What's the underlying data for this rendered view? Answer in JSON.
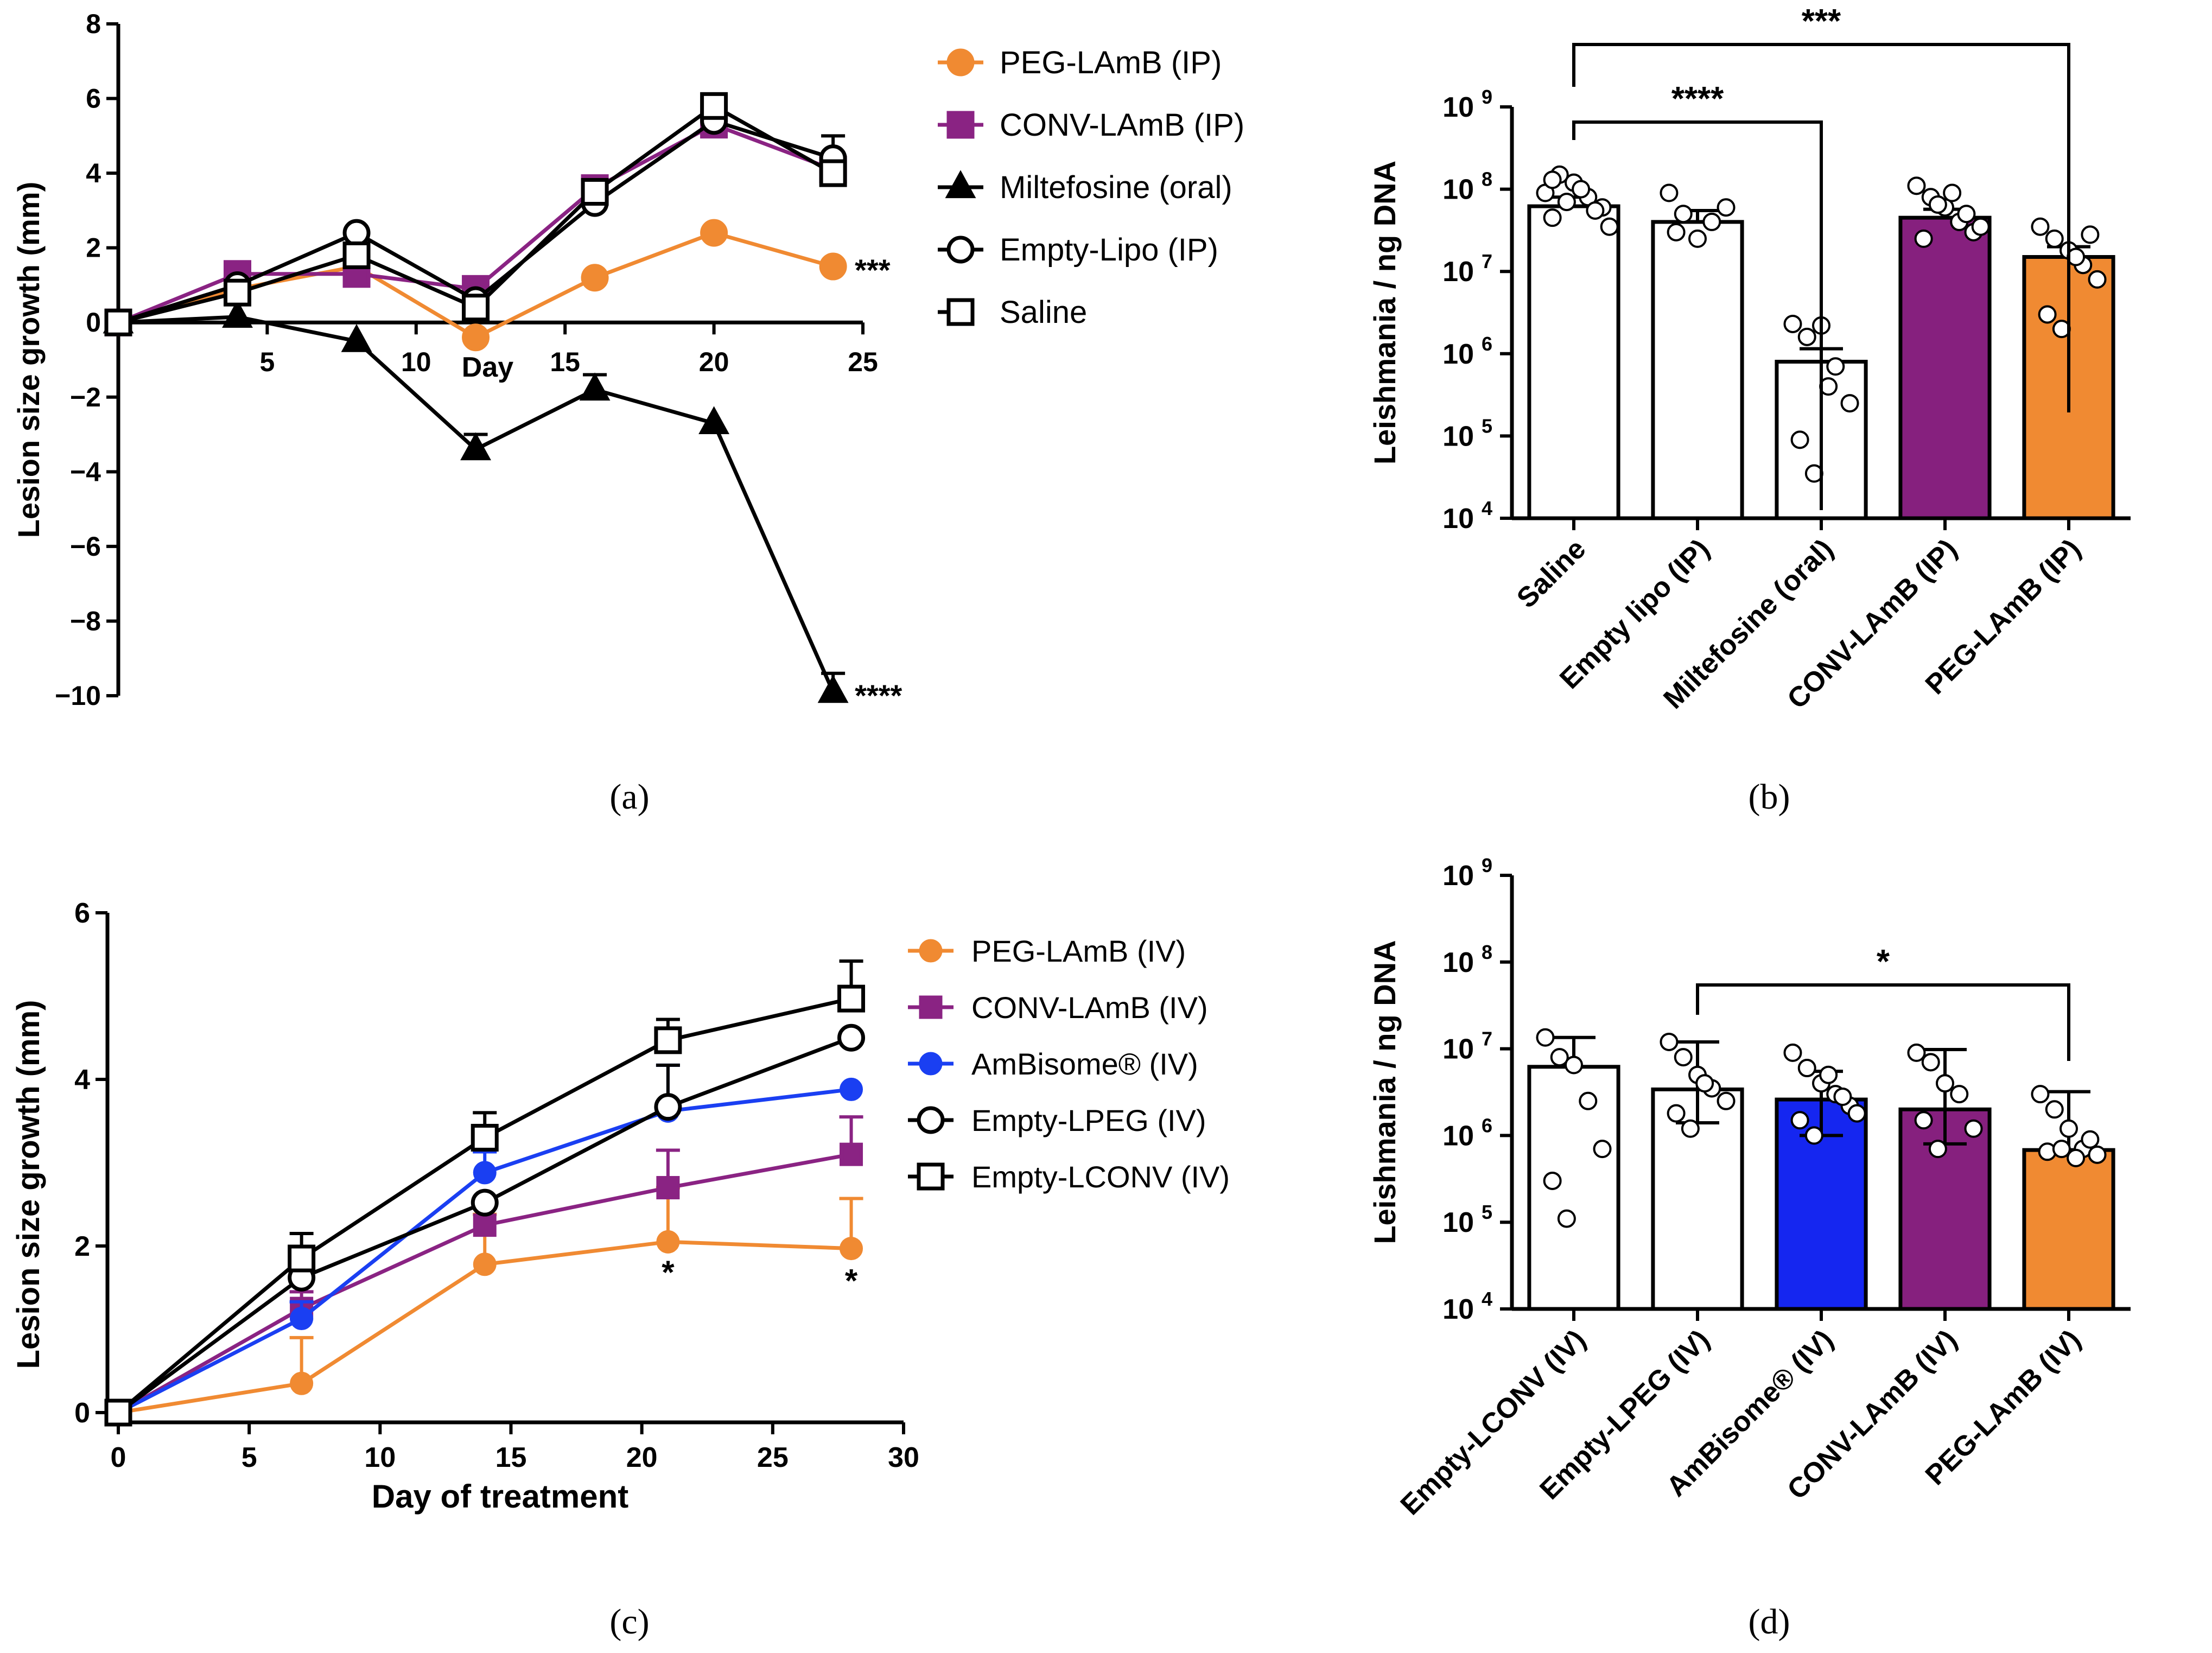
{
  "panel_captions": [
    "(a)",
    "(b)",
    "(c)",
    "(d)"
  ],
  "chart_data": [
    {
      "id": "a",
      "type": "line",
      "xlabel": "Day",
      "ylabel": "Lesion size growth  (mm)",
      "xlim": [
        0,
        25
      ],
      "ylim": [
        -10,
        8
      ],
      "xticks": [
        5,
        10,
        15,
        20,
        25
      ],
      "yticks": [
        8,
        6,
        4,
        2,
        0,
        -2,
        -4,
        -6,
        -8,
        -10
      ],
      "ytick_labels": [
        "8",
        "6",
        "4",
        "2",
        "0",
        "−2",
        "−4",
        "−6",
        "−8",
        "−10"
      ],
      "legend_position": "right",
      "series": [
        {
          "name": "PEG-LAmB (IP)",
          "color": "#F08A32",
          "marker": "circle",
          "filled": true,
          "x": [
            0,
            4,
            8,
            12,
            16,
            20,
            24
          ],
          "y": [
            0,
            0.9,
            1.5,
            -0.4,
            1.2,
            2.4,
            1.5
          ],
          "err": [
            0,
            0,
            0,
            0,
            0,
            0,
            0
          ],
          "end_annotation": "***"
        },
        {
          "name": "CONV-LAmB (IP)",
          "color": "#8A2383",
          "marker": "square",
          "filled": true,
          "x": [
            0,
            4,
            8,
            12,
            16,
            20,
            24
          ],
          "y": [
            0,
            1.3,
            1.3,
            0.9,
            3.6,
            5.3,
            4.1
          ],
          "err": [
            0,
            0,
            0,
            0,
            0,
            0,
            0
          ]
        },
        {
          "name": "Miltefosine (oral)",
          "color": "#000000",
          "marker": "triangle",
          "filled": true,
          "x": [
            0,
            4,
            8,
            12,
            16,
            20,
            24
          ],
          "y": [
            0,
            0.15,
            -0.5,
            -3.4,
            -1.8,
            -2.7,
            -9.9
          ],
          "err": [
            0,
            0,
            0,
            0.4,
            0.4,
            0,
            0.5
          ],
          "end_annotation": "****"
        },
        {
          "name": "Empty-Lipo (IP)",
          "color": "#000000",
          "marker": "circle",
          "filled": false,
          "x": [
            0,
            4,
            8,
            12,
            16,
            20,
            24
          ],
          "y": [
            0,
            1.0,
            2.4,
            0.6,
            3.2,
            5.4,
            4.4
          ],
          "err": [
            0,
            0,
            0,
            0,
            0,
            0,
            0.6
          ]
        },
        {
          "name": "Saline",
          "color": "#000000",
          "marker": "square",
          "filled": false,
          "x": [
            0,
            4,
            8,
            12,
            16,
            20,
            24
          ],
          "y": [
            0,
            0.8,
            1.8,
            0.4,
            3.5,
            5.8,
            4.0
          ],
          "err": [
            0,
            0,
            0,
            0,
            0,
            0,
            0
          ]
        }
      ]
    },
    {
      "id": "b",
      "type": "bar",
      "scale": "log",
      "ylabel": "Leishmania / ng DNA",
      "ylim": [
        10000,
        1000000000
      ],
      "ytick_base": "10",
      "ytick_exponents": [
        "4",
        "5",
        "6",
        "7",
        "8",
        "9"
      ],
      "categories": [
        "Saline",
        "Empty lipo (IP)",
        "Miltefosine (oral)",
        "CONV-LAmB (IP)",
        "PEG-LAmB (IP)"
      ],
      "values": [
        62000000,
        40000000,
        800000,
        45000000,
        15000000
      ],
      "errors_upper": [
        80000000,
        55000000,
        1150000,
        57000000,
        20000000
      ],
      "colors": [
        "#FFFFFF",
        "#FFFFFF",
        "#FFFFFF",
        "#86207E",
        "#F08A32"
      ],
      "points": [
        [
          90000000,
          150000000,
          120000000,
          80000000,
          60000000,
          45000000,
          70000000,
          100000000,
          55000000,
          35000000,
          130000000
        ],
        [
          90000000,
          50000000,
          25000000,
          40000000,
          60000000,
          30000000
        ],
        [
          2300000,
          1600000,
          2200000,
          700000,
          250000,
          90000,
          35000,
          400000
        ],
        [
          110000000,
          80000000,
          60000000,
          40000000,
          30000000,
          25000000,
          65000000,
          90000000,
          50000000,
          35000000
        ],
        [
          35000000,
          25000000,
          18000000,
          12000000,
          8000000,
          3000000,
          2000000,
          15000000,
          28000000
        ]
      ],
      "significance": [
        {
          "from": 0,
          "to": 2,
          "label": "****"
        },
        {
          "from": 0,
          "to": 4,
          "label": "***"
        }
      ]
    },
    {
      "id": "c",
      "type": "line",
      "xlabel": "Day of treatment",
      "ylabel": "Lesion size growth (mm)",
      "xlim": [
        0,
        30
      ],
      "ylim": [
        0,
        6
      ],
      "xticks": [
        0,
        5,
        10,
        15,
        20,
        25,
        30
      ],
      "yticks": [
        0,
        2,
        4,
        6
      ],
      "legend_position": "right",
      "annotations": [
        {
          "x": 21,
          "y": 1.55,
          "text": "*"
        },
        {
          "x": 28,
          "y": 1.45,
          "text": "*"
        }
      ],
      "series": [
        {
          "name": "PEG-LAmB (IV)",
          "color": "#F08A32",
          "marker": "circle",
          "filled": true,
          "x": [
            0,
            7,
            14,
            21,
            28
          ],
          "y": [
            0,
            0.35,
            1.78,
            2.05,
            1.97
          ],
          "err": [
            0,
            0.55,
            0.6,
            0.65,
            0.6
          ]
        },
        {
          "name": "CONV-LAmB (IV)",
          "color": "#8A2383",
          "marker": "square",
          "filled": true,
          "x": [
            0,
            7,
            14,
            21,
            28
          ],
          "y": [
            0,
            1.25,
            2.25,
            2.7,
            3.1
          ],
          "err": [
            0,
            0.2,
            0.2,
            0.45,
            0.45
          ]
        },
        {
          "name": "AmBisome® (IV)",
          "color": "#1A3FF2",
          "marker": "circle",
          "filled": true,
          "x": [
            0,
            7,
            14,
            21,
            28
          ],
          "y": [
            0,
            1.13,
            2.88,
            3.62,
            3.88
          ],
          "err": [
            0,
            0.2,
            0.25,
            0.55,
            0
          ]
        },
        {
          "name": "Empty-LPEG (IV)",
          "color": "#000000",
          "marker": "circle",
          "filled": false,
          "x": [
            0,
            7,
            14,
            21,
            28
          ],
          "y": [
            0,
            1.62,
            2.52,
            3.67,
            4.5
          ],
          "err": [
            0,
            0,
            0,
            0.5,
            0
          ]
        },
        {
          "name": "Empty-LCONV (IV)",
          "color": "#000000",
          "marker": "square",
          "filled": false,
          "x": [
            0,
            7,
            14,
            21,
            28
          ],
          "y": [
            0,
            1.85,
            3.3,
            4.47,
            4.97
          ],
          "err": [
            0,
            0.3,
            0.3,
            0.25,
            0.45
          ]
        }
      ]
    },
    {
      "id": "d",
      "type": "bar",
      "scale": "log",
      "ylabel": "Leishmania / ng DNA",
      "ylim": [
        10000,
        1000000000
      ],
      "ytick_base": "10",
      "ytick_exponents": [
        "4",
        "5",
        "6",
        "7",
        "8",
        "9"
      ],
      "categories": [
        "Empty-LCONV (IV)",
        "Empty-LPEG (IV)",
        "AmBisome® (IV)",
        "CONV-LAmB (IV)",
        "PEG-LAmB (IV)"
      ],
      "values": [
        6200000,
        3400000,
        2600000,
        2000000,
        680000
      ],
      "errors_lower": [
        6200000,
        1400000,
        1000000,
        800000,
        680000
      ],
      "errors_upper": [
        13500000,
        12000000,
        5500000,
        9800000,
        3200000
      ],
      "colors": [
        "#FFFFFF",
        "#FFFFFF",
        "#1526F0",
        "#86207E",
        "#F08A32"
      ],
      "points": [
        [
          13500000,
          8000000,
          6500000,
          2500000,
          700000,
          300000,
          110000
        ],
        [
          12000000,
          8000000,
          5000000,
          3500000,
          2500000,
          1800000,
          1200000,
          4000000
        ],
        [
          9000000,
          6000000,
          4000000,
          3000000,
          2200000,
          1500000,
          1000000,
          5000000,
          2800000,
          1800000
        ],
        [
          9000000,
          7000000,
          4000000,
          3000000,
          1200000,
          1500000,
          700000
        ],
        [
          3000000,
          2000000,
          1200000,
          700000,
          600000,
          650000,
          700000,
          550000,
          900000
        ]
      ],
      "significance": [
        {
          "from": 1,
          "to": 4,
          "label": "*"
        }
      ]
    }
  ]
}
